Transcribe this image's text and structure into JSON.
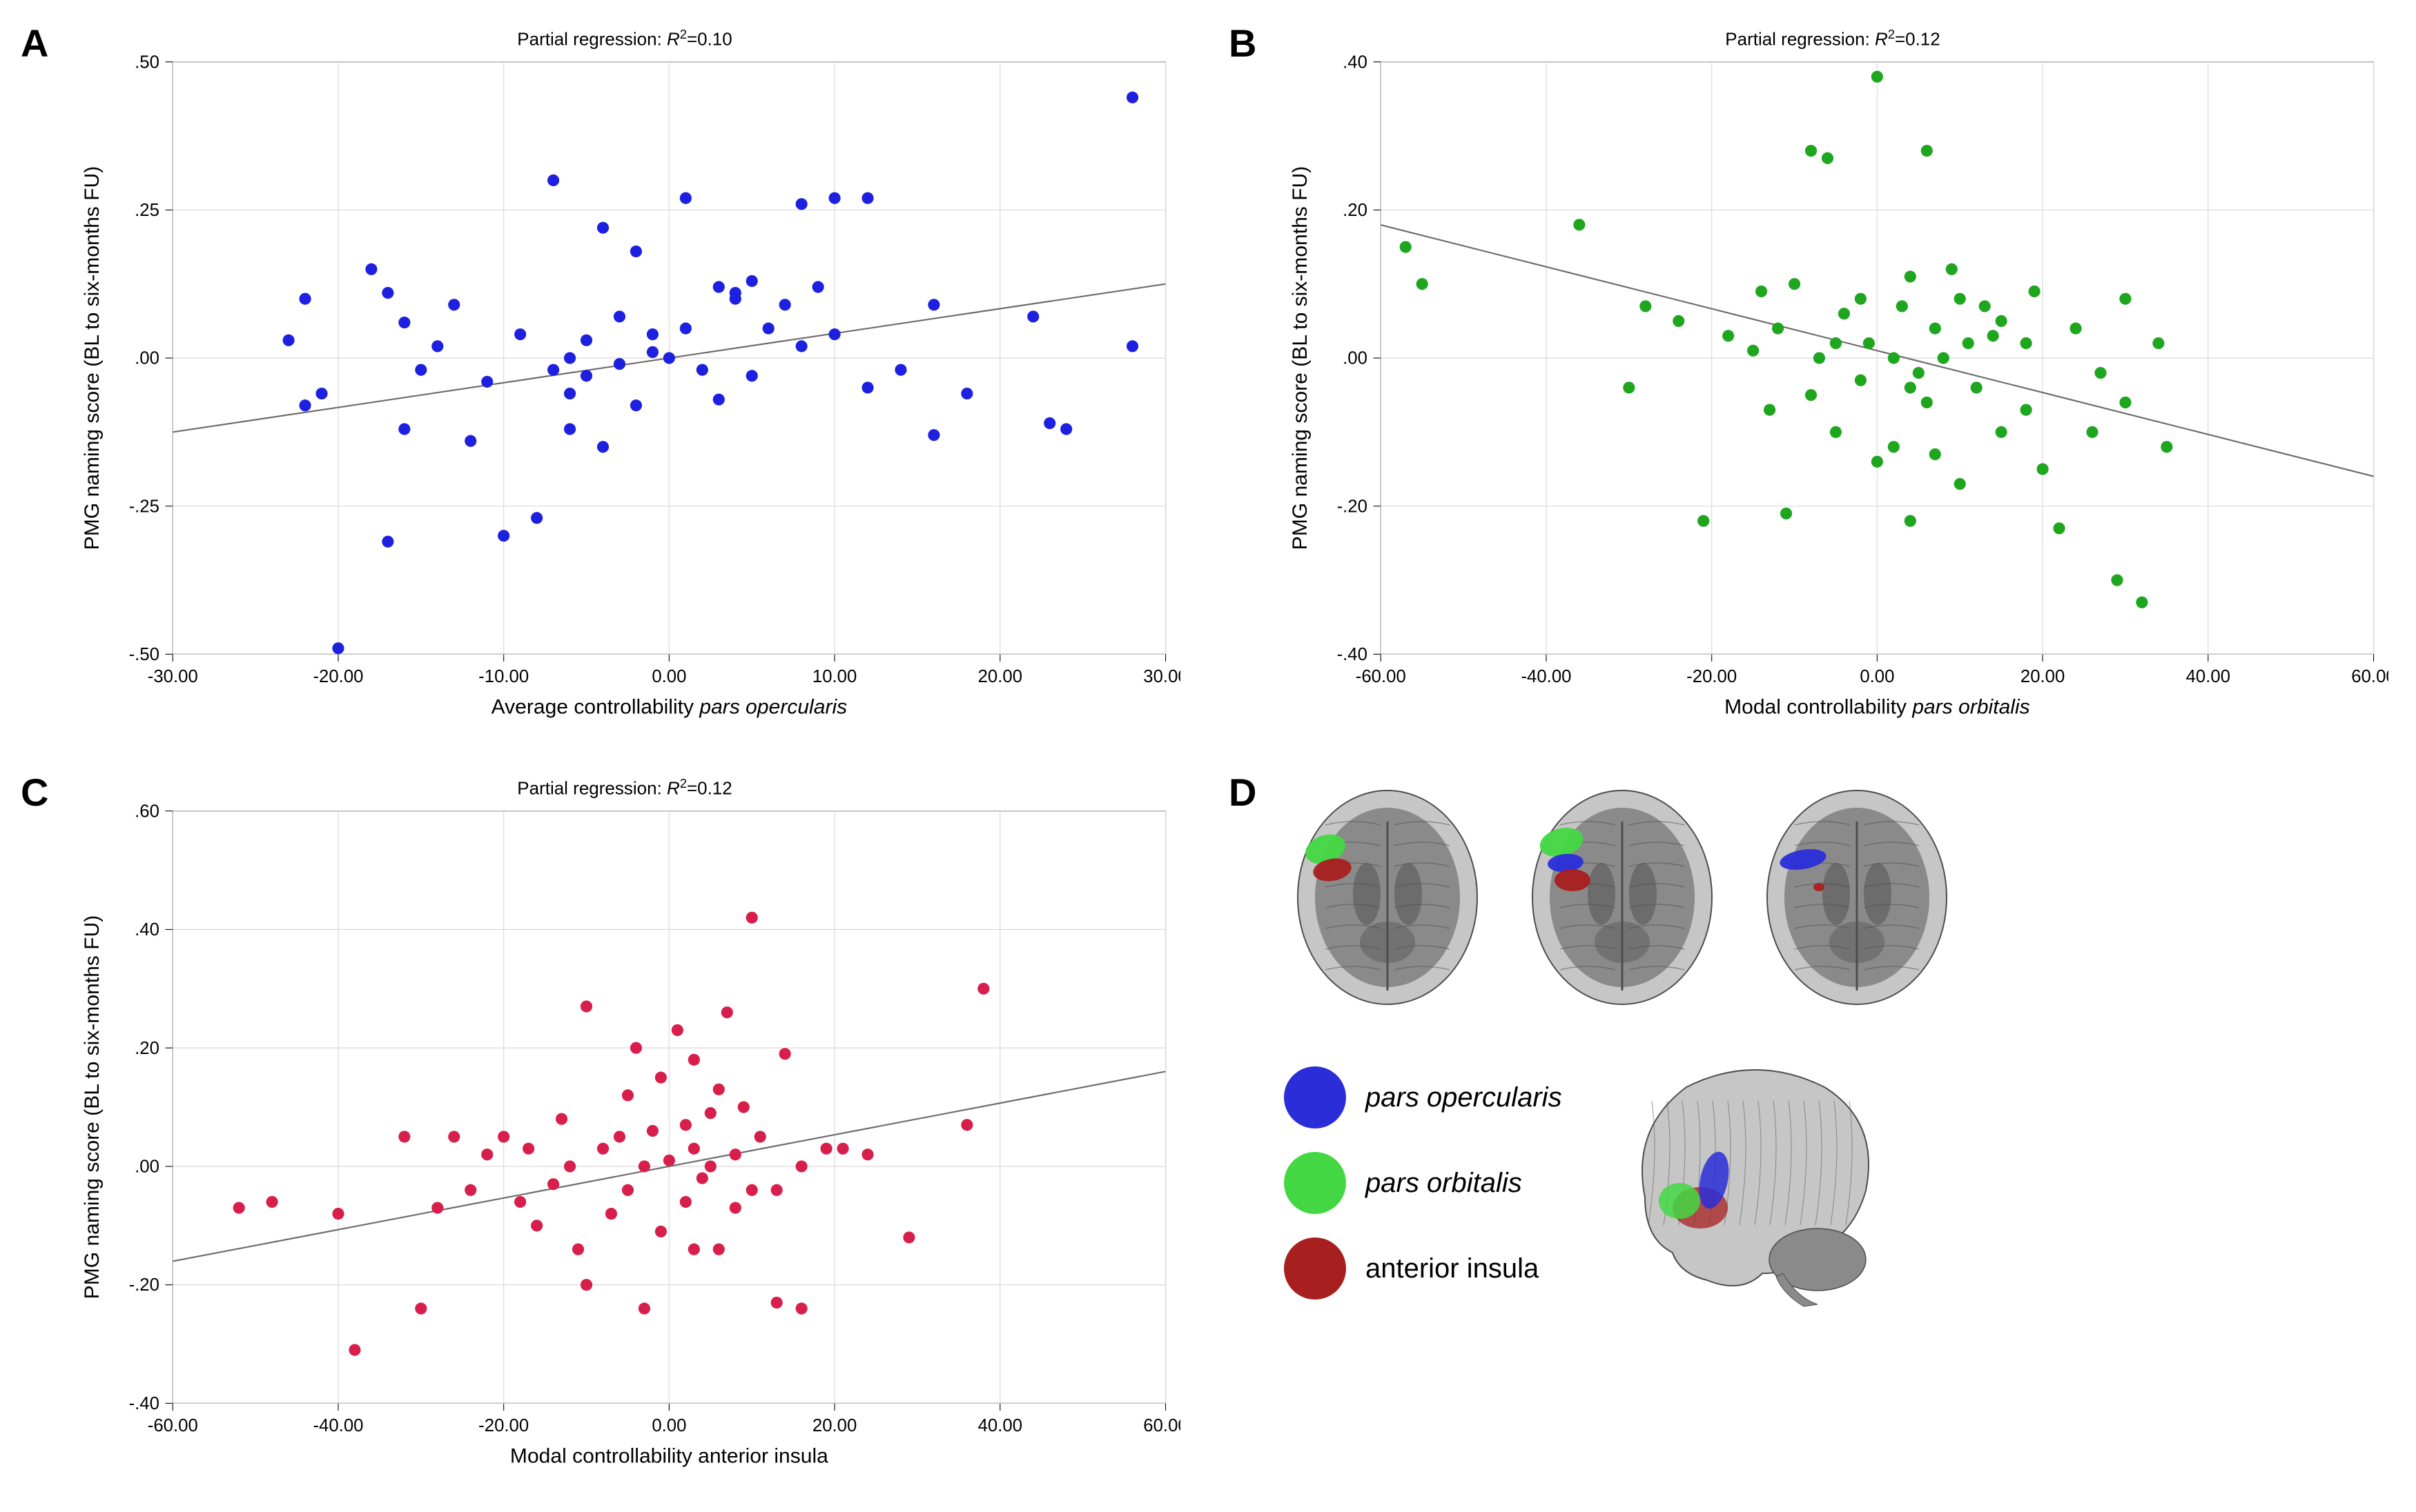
{
  "figure": {
    "background_color": "#ffffff",
    "grid_color": "#d6d6d6",
    "axis_color": "#000000",
    "regression_line_color": "#6b6b6b",
    "panel_label_fontsize": 56,
    "title_fontsize": 26,
    "axis_fontsize": 24,
    "axis_label_fontsize": 28
  },
  "legend": {
    "items": [
      {
        "id": "pars-opercularis",
        "label": "pars opercularis",
        "italic": true,
        "color": "#2a2dd8"
      },
      {
        "id": "pars-orbitalis",
        "label": "pars orbitalis",
        "italic": true,
        "color": "#43d843"
      },
      {
        "id": "anterior-insula",
        "label": "anterior insula",
        "italic": false,
        "color": "#a81f1f"
      }
    ]
  },
  "panels": {
    "A": {
      "label": "A",
      "type": "scatter",
      "title_prefix": "Partial regression: ",
      "r2_label": "R",
      "r2_sup": "2",
      "r2_value": "=0.10",
      "xlabel_pre": "Average controllability ",
      "xlabel_italic": "pars opercularis",
      "ylabel": "PMG naming score (BL to six-months FU)",
      "xlim": [
        -30,
        30
      ],
      "xtick_step": 10,
      "xtick_decimals": 2,
      "ylim": [
        -0.5,
        0.5
      ],
      "ytick_step": 0.25,
      "ytick_decimals": 2,
      "ytick_nosign_zero": true,
      "marker_color": "#1e20e0",
      "marker_radius": 8,
      "regression": {
        "slope": 0.004167,
        "intercept": 0.0
      },
      "points": [
        [
          -23,
          0.03
        ],
        [
          -22,
          -0.08
        ],
        [
          -22,
          0.1
        ],
        [
          -21,
          -0.06
        ],
        [
          -20,
          -0.49
        ],
        [
          -18,
          0.15
        ],
        [
          -17,
          0.11
        ],
        [
          -17,
          -0.31
        ],
        [
          -16,
          0.06
        ],
        [
          -16,
          -0.12
        ],
        [
          -15,
          -0.02
        ],
        [
          -14,
          0.02
        ],
        [
          -13,
          0.09
        ],
        [
          -12,
          -0.14
        ],
        [
          -11,
          -0.04
        ],
        [
          -10,
          -0.3
        ],
        [
          -9,
          0.04
        ],
        [
          -8,
          -0.27
        ],
        [
          -7,
          0.3
        ],
        [
          -7,
          -0.02
        ],
        [
          -6,
          -0.12
        ],
        [
          -6,
          -0.06
        ],
        [
          -6,
          0.0
        ],
        [
          -5,
          -0.03
        ],
        [
          -5,
          0.03
        ],
        [
          -4,
          0.22
        ],
        [
          -4,
          -0.15
        ],
        [
          -3,
          -0.01
        ],
        [
          -3,
          0.07
        ],
        [
          -2,
          0.18
        ],
        [
          -2,
          -0.08
        ],
        [
          -1,
          0.01
        ],
        [
          -1,
          0.04
        ],
        [
          0,
          0.0
        ],
        [
          1,
          0.27
        ],
        [
          1,
          0.05
        ],
        [
          2,
          -0.02
        ],
        [
          3,
          0.12
        ],
        [
          3,
          -0.07
        ],
        [
          4,
          0.1
        ],
        [
          4,
          0.11
        ],
        [
          5,
          -0.03
        ],
        [
          5,
          0.13
        ],
        [
          6,
          0.05
        ],
        [
          7,
          0.09
        ],
        [
          8,
          0.02
        ],
        [
          8,
          0.26
        ],
        [
          9,
          0.12
        ],
        [
          10,
          0.04
        ],
        [
          10,
          0.27
        ],
        [
          12,
          -0.05
        ],
        [
          12,
          0.27
        ],
        [
          14,
          -0.02
        ],
        [
          16,
          0.09
        ],
        [
          16,
          -0.13
        ],
        [
          18,
          -0.06
        ],
        [
          22,
          0.07
        ],
        [
          23,
          -0.11
        ],
        [
          24,
          -0.12
        ],
        [
          28,
          0.44
        ],
        [
          28,
          0.02
        ]
      ]
    },
    "B": {
      "label": "B",
      "type": "scatter",
      "title_prefix": "Partial regression: ",
      "r2_label": "R",
      "r2_sup": "2",
      "r2_value": "=0.12",
      "xlabel_pre": "Modal controllability ",
      "xlabel_italic": "pars orbitalis",
      "ylabel": "PMG naming score (BL to six-months FU)",
      "xlim": [
        -60,
        60
      ],
      "xtick_step": 20,
      "xtick_decimals": 2,
      "ylim": [
        -0.4,
        0.4
      ],
      "ytick_step": 0.2,
      "ytick_decimals": 2,
      "ytick_nosign_zero": true,
      "marker_color": "#1ea61e",
      "marker_radius": 8,
      "regression": {
        "slope": -0.00283,
        "intercept": 0.01
      },
      "points": [
        [
          -57,
          0.15
        ],
        [
          -55,
          0.1
        ],
        [
          -36,
          0.18
        ],
        [
          -30,
          -0.04
        ],
        [
          -28,
          0.07
        ],
        [
          -24,
          0.05
        ],
        [
          -21,
          -0.22
        ],
        [
          -18,
          0.03
        ],
        [
          -15,
          0.01
        ],
        [
          -14,
          0.09
        ],
        [
          -12,
          0.04
        ],
        [
          -13,
          -0.07
        ],
        [
          -11,
          -0.21
        ],
        [
          -10,
          0.1
        ],
        [
          -8,
          -0.05
        ],
        [
          -8,
          0.28
        ],
        [
          -7,
          0.0
        ],
        [
          -6,
          0.27
        ],
        [
          -5,
          0.02
        ],
        [
          -5,
          -0.1
        ],
        [
          -4,
          0.06
        ],
        [
          -2,
          0.08
        ],
        [
          -2,
          -0.03
        ],
        [
          -1,
          0.02
        ],
        [
          0,
          0.38
        ],
        [
          0,
          -0.14
        ],
        [
          2,
          0.0
        ],
        [
          2,
          -0.12
        ],
        [
          3,
          0.07
        ],
        [
          4,
          -0.04
        ],
        [
          4,
          -0.22
        ],
        [
          4,
          0.11
        ],
        [
          5,
          -0.02
        ],
        [
          6,
          0.28
        ],
        [
          6,
          -0.06
        ],
        [
          7,
          0.04
        ],
        [
          7,
          -0.13
        ],
        [
          8,
          0.0
        ],
        [
          9,
          0.12
        ],
        [
          10,
          0.08
        ],
        [
          10,
          -0.17
        ],
        [
          11,
          0.02
        ],
        [
          12,
          -0.04
        ],
        [
          13,
          0.07
        ],
        [
          14,
          0.03
        ],
        [
          15,
          -0.1
        ],
        [
          15,
          0.05
        ],
        [
          18,
          -0.07
        ],
        [
          18,
          0.02
        ],
        [
          19,
          0.09
        ],
        [
          20,
          -0.15
        ],
        [
          22,
          -0.23
        ],
        [
          24,
          0.04
        ],
        [
          26,
          -0.1
        ],
        [
          27,
          -0.02
        ],
        [
          29,
          -0.3
        ],
        [
          30,
          -0.06
        ],
        [
          30,
          0.08
        ],
        [
          32,
          -0.33
        ],
        [
          34,
          0.02
        ],
        [
          35,
          -0.12
        ]
      ]
    },
    "C": {
      "label": "C",
      "type": "scatter",
      "title_prefix": "Partial regression: ",
      "r2_label": "R",
      "r2_sup": "2",
      "r2_value": "=0.12",
      "xlabel_pre": "Modal controllability anterior insula",
      "xlabel_italic": "",
      "ylabel": "PMG naming score (BL to six-months FU)",
      "xlim": [
        -60,
        60
      ],
      "xtick_step": 20,
      "xtick_decimals": 2,
      "ylim": [
        -0.4,
        0.6
      ],
      "ytick_step": 0.2,
      "ytick_decimals": 2,
      "ytick_nosign_zero": true,
      "marker_color": "#d81e4b",
      "marker_radius": 8,
      "regression": {
        "slope": 0.00267,
        "intercept": 0.0
      },
      "points": [
        [
          -52,
          -0.07
        ],
        [
          -48,
          -0.06
        ],
        [
          -40,
          -0.08
        ],
        [
          -38,
          -0.31
        ],
        [
          -32,
          0.05
        ],
        [
          -30,
          -0.24
        ],
        [
          -28,
          -0.07
        ],
        [
          -26,
          0.05
        ],
        [
          -24,
          -0.04
        ],
        [
          -22,
          0.02
        ],
        [
          -20,
          0.05
        ],
        [
          -18,
          -0.06
        ],
        [
          -17,
          0.03
        ],
        [
          -16,
          -0.1
        ],
        [
          -14,
          -0.03
        ],
        [
          -13,
          0.08
        ],
        [
          -12,
          0.0
        ],
        [
          -11,
          -0.14
        ],
        [
          -10,
          -0.2
        ],
        [
          -10,
          0.27
        ],
        [
          -8,
          0.03
        ],
        [
          -7,
          -0.08
        ],
        [
          -6,
          0.05
        ],
        [
          -5,
          0.12
        ],
        [
          -5,
          -0.04
        ],
        [
          -4,
          0.2
        ],
        [
          -3,
          -0.24
        ],
        [
          -3,
          0.0
        ],
        [
          -2,
          0.06
        ],
        [
          -1,
          0.15
        ],
        [
          -1,
          -0.11
        ],
        [
          0,
          0.01
        ],
        [
          1,
          0.23
        ],
        [
          2,
          -0.06
        ],
        [
          2,
          0.07
        ],
        [
          3,
          0.18
        ],
        [
          3,
          -0.14
        ],
        [
          3,
          0.03
        ],
        [
          4,
          -0.02
        ],
        [
          5,
          0.0
        ],
        [
          5,
          0.09
        ],
        [
          6,
          -0.14
        ],
        [
          6,
          0.13
        ],
        [
          7,
          0.26
        ],
        [
          8,
          0.02
        ],
        [
          8,
          -0.07
        ],
        [
          9,
          0.1
        ],
        [
          10,
          0.42
        ],
        [
          10,
          -0.04
        ],
        [
          11,
          0.05
        ],
        [
          13,
          -0.23
        ],
        [
          13,
          -0.04
        ],
        [
          14,
          0.19
        ],
        [
          16,
          0.0
        ],
        [
          16,
          -0.24
        ],
        [
          19,
          0.03
        ],
        [
          21,
          0.03
        ],
        [
          24,
          0.02
        ],
        [
          29,
          -0.12
        ],
        [
          36,
          0.07
        ],
        [
          38,
          0.3
        ]
      ]
    },
    "D": {
      "label": "D",
      "type": "brain-illustration",
      "brain_gray": "#8a8a8a",
      "brain_gray_dark": "#4d4d4d",
      "brain_gray_light": "#c6c6c6"
    }
  }
}
